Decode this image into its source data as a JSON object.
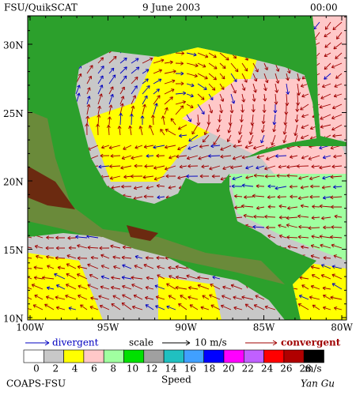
{
  "header": {
    "title": "FSU/QuikSCAT",
    "date": "9 June 2003",
    "time": "00:00"
  },
  "map": {
    "lat_labels": [
      "30N",
      "25N",
      "20N",
      "15N",
      "10N"
    ],
    "lon_labels": [
      "100W",
      "95W",
      "90W",
      "85W",
      "80W"
    ]
  },
  "legend": {
    "divergent": "divergent",
    "scale": "scale",
    "scale_value": "10 m/s",
    "convergent": "convergent"
  },
  "colorbar": {
    "ticks": [
      0,
      2,
      4,
      6,
      8,
      10,
      12,
      14,
      16,
      18,
      20,
      22,
      24,
      26,
      28
    ],
    "unit": "m/s",
    "label": "Speed",
    "colors": [
      "#ffffff",
      "#c8c8c8",
      "#ffff00",
      "#ffc8c8",
      "#a0ffa0",
      "#00e000",
      "#a0a0a0",
      "#20c0c0",
      "#40a0ff",
      "#0000ff",
      "#ff00ff",
      "#c060ff",
      "#ff0000",
      "#b00000",
      "#000000"
    ]
  },
  "footer": {
    "credit": "COAPS-FSU",
    "author": "Yan Gu"
  }
}
